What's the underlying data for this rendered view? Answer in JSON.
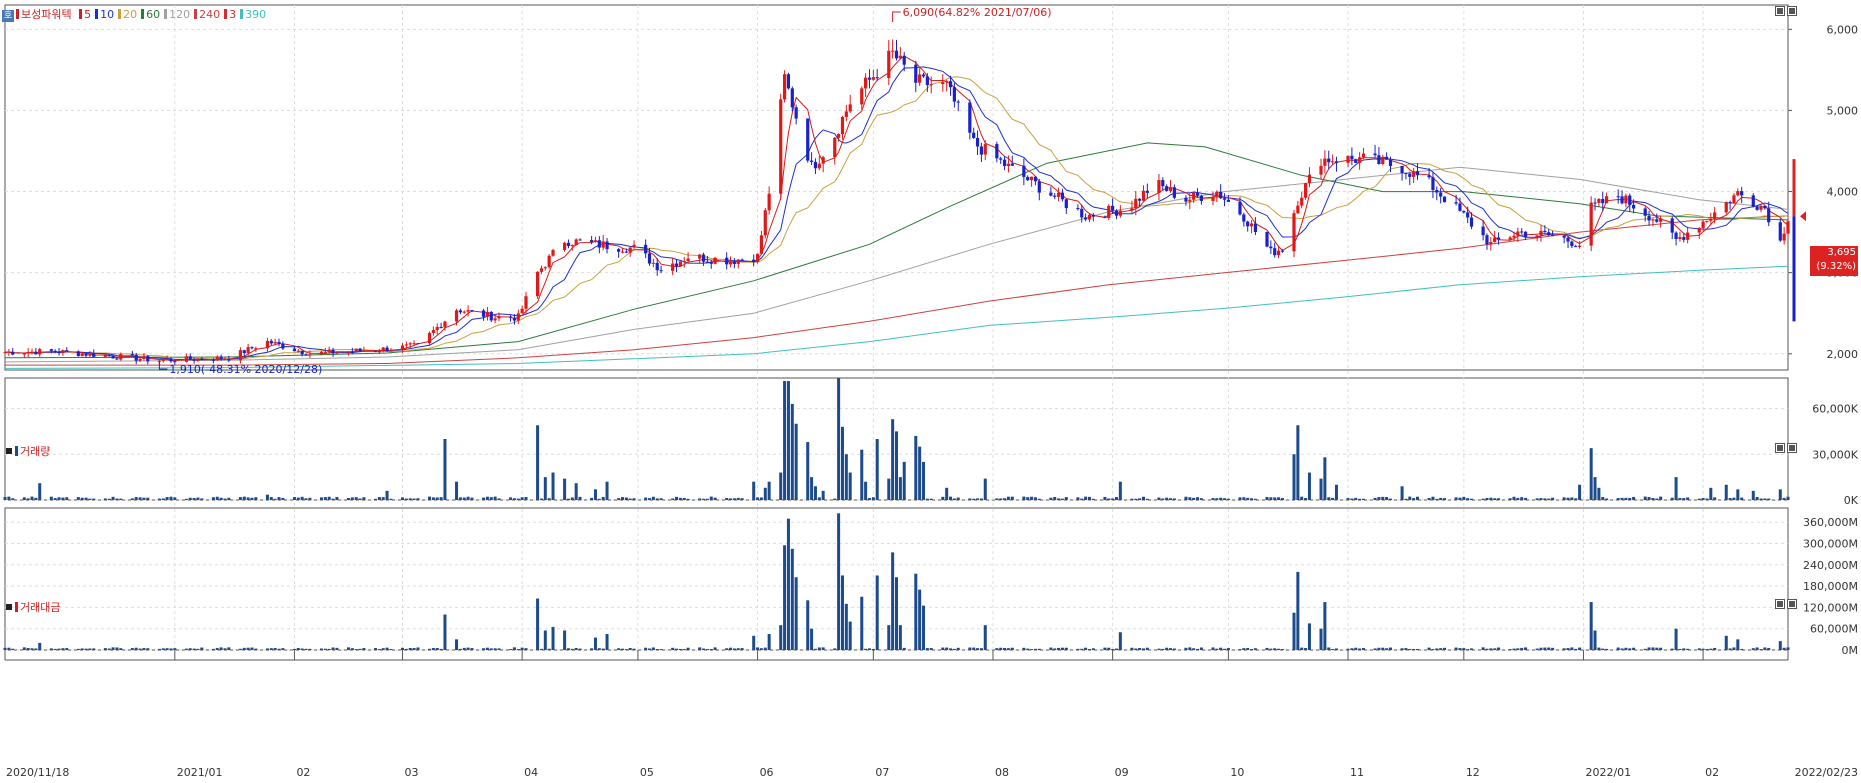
{
  "stock_name": "보성파워텍",
  "legend": {
    "ma": [
      {
        "label": "5",
        "color": "#d81b1b"
      },
      {
        "label": "10",
        "color": "#1d2fcf"
      },
      {
        "label": "20",
        "color": "#c8a040"
      },
      {
        "label": "60",
        "color": "#2c7a3a"
      },
      {
        "label": "120",
        "color": "#a0a0a0"
      },
      {
        "label": "240",
        "color": "#d04040"
      },
      {
        "label": "3",
        "color": "#d03030"
      },
      {
        "label": "390",
        "color": "#40c0c0"
      }
    ]
  },
  "panes": {
    "volume_label": "거래량",
    "amount_label": "거래대금"
  },
  "annotations": {
    "high": "6,090(64.82% 2021/07/06)",
    "low": "1,910(-48.31% 2020/12/28)",
    "current_price": "3,695",
    "current_change": "(9.32%)"
  },
  "chart_data": [
    {
      "type": "candlestick",
      "title": "보성파워텍",
      "x_range": [
        "2020/11/18",
        "2022/02/23"
      ],
      "ylim": [
        1800,
        6300
      ],
      "y_ticks": [
        "2,000",
        "3,000",
        "4,000",
        "5,000",
        "6,000"
      ],
      "x_ticks": [
        "2020/11/18",
        "2021/01",
        "02",
        "03",
        "04",
        "05",
        "06",
        "07",
        "08",
        "09",
        "10",
        "11",
        "12",
        "2022/01",
        "02",
        "2022/02/23"
      ],
      "high_point": {
        "value": 6090,
        "date": "2021/07/06"
      },
      "low_point": {
        "value": 1910,
        "date": "2020/12/28"
      },
      "last_price": 3695,
      "price_path": [
        [
          "2020/11/18",
          2020
        ],
        [
          "2020/12/01",
          2030
        ],
        [
          "2020/12/28",
          1920
        ],
        [
          "2021/01/15",
          1950
        ],
        [
          "2021/01/25",
          2150
        ],
        [
          "2021/02/05",
          2000
        ],
        [
          "2021/02/25",
          2060
        ],
        [
          "2021/03/05",
          2100
        ],
        [
          "2021/03/15",
          2550
        ],
        [
          "2021/03/25",
          2450
        ],
        [
          "2021/03/31",
          2450
        ],
        [
          "2021/04/05",
          3000
        ],
        [
          "2021/04/12",
          3400
        ],
        [
          "2021/04/20",
          3350
        ],
        [
          "2021/04/30",
          3300
        ],
        [
          "2021/05/07",
          3050
        ],
        [
          "2021/05/14",
          3200
        ],
        [
          "2021/05/25",
          3150
        ],
        [
          "2021/06/01",
          3200
        ],
        [
          "2021/06/04",
          4000
        ],
        [
          "2021/06/08",
          5400
        ],
        [
          "2021/06/15",
          4300
        ],
        [
          "2021/06/20",
          4600
        ],
        [
          "2021/06/25",
          5100
        ],
        [
          "2021/07/06",
          5700
        ],
        [
          "2021/07/12",
          5350
        ],
        [
          "2021/07/20",
          5300
        ],
        [
          "2021/07/27",
          4600
        ],
        [
          "2021/08/05",
          4300
        ],
        [
          "2021/08/15",
          4000
        ],
        [
          "2021/08/25",
          3700
        ],
        [
          "2021/09/05",
          3800
        ],
        [
          "2021/09/12",
          4100
        ],
        [
          "2021/09/20",
          3900
        ],
        [
          "2021/09/28",
          4000
        ],
        [
          "2021/10/05",
          3700
        ],
        [
          "2021/10/12",
          3250
        ],
        [
          "2021/10/15",
          3300
        ],
        [
          "2021/10/19",
          3900
        ],
        [
          "2021/10/25",
          4400
        ],
        [
          "2021/11/05",
          4400
        ],
        [
          "2021/11/15",
          4300
        ],
        [
          "2021/11/22",
          4100
        ],
        [
          "2021/12/01",
          3700
        ],
        [
          "2021/12/08",
          3350
        ],
        [
          "2021/12/15",
          3500
        ],
        [
          "2021/12/25",
          3450
        ],
        [
          "2021/12/31",
          3350
        ],
        [
          "2022/01/03",
          3800
        ],
        [
          "2022/01/10",
          3950
        ],
        [
          "2022/01/20",
          3650
        ],
        [
          "2022/01/25",
          3400
        ],
        [
          "2022/02/03",
          3700
        ],
        [
          "2022/02/10",
          3980
        ],
        [
          "2022/02/17",
          3800
        ],
        [
          "2022/02/21",
          3380
        ],
        [
          "2022/02/23",
          3695
        ]
      ],
      "ma_curves": {
        "60": [
          [
            "2020/11/18",
            1950
          ],
          [
            "2021/01/15",
            1960
          ],
          [
            "2021/02/25",
            2010
          ],
          [
            "2021/03/31",
            2150
          ],
          [
            "2021/04/30",
            2550
          ],
          [
            "2021/05/31",
            2900
          ],
          [
            "2021/06/30",
            3350
          ],
          [
            "2021/07/20",
            3800
          ],
          [
            "2021/08/15",
            4350
          ],
          [
            "2021/09/10",
            4600
          ],
          [
            "2021/09/25",
            4550
          ],
          [
            "2021/10/20",
            4200
          ],
          [
            "2021/11/10",
            4000
          ],
          [
            "2021/12/01",
            4000
          ],
          [
            "2021/12/31",
            3850
          ],
          [
            "2022/01/20",
            3700
          ],
          [
            "2022/02/23",
            3650
          ]
        ],
        "120": [
          [
            "2020/11/18",
            1900
          ],
          [
            "2021/01/15",
            1920
          ],
          [
            "2021/02/25",
            1960
          ],
          [
            "2021/03/31",
            2050
          ],
          [
            "2021/04/30",
            2300
          ],
          [
            "2021/05/31",
            2500
          ],
          [
            "2021/06/30",
            2900
          ],
          [
            "2021/07/31",
            3350
          ],
          [
            "2021/08/31",
            3750
          ],
          [
            "2021/09/30",
            4000
          ],
          [
            "2021/10/31",
            4150
          ],
          [
            "2021/11/30",
            4300
          ],
          [
            "2021/12/31",
            4150
          ],
          [
            "2022/01/31",
            3900
          ],
          [
            "2022/02/23",
            3780
          ]
        ],
        "240": [
          [
            "2020/11/18",
            1860
          ],
          [
            "2021/01/15",
            1860
          ],
          [
            "2021/02/25",
            1880
          ],
          [
            "2021/03/31",
            1950
          ],
          [
            "2021/04/30",
            2050
          ],
          [
            "2021/05/31",
            2200
          ],
          [
            "2021/06/30",
            2400
          ],
          [
            "2021/07/31",
            2650
          ],
          [
            "2021/08/31",
            2850
          ],
          [
            "2021/09/30",
            3000
          ],
          [
            "2021/10/31",
            3150
          ],
          [
            "2021/11/30",
            3300
          ],
          [
            "2021/12/31",
            3500
          ],
          [
            "2022/01/31",
            3650
          ],
          [
            "2022/02/23",
            3700
          ]
        ],
        "390": [
          [
            "2020/11/18",
            1820
          ],
          [
            "2021/01/15",
            1830
          ],
          [
            "2021/03/31",
            1880
          ],
          [
            "2021/05/31",
            2000
          ],
          [
            "2021/06/30",
            2150
          ],
          [
            "2021/07/31",
            2350
          ],
          [
            "2021/08/31",
            2450
          ],
          [
            "2021/09/30",
            2560
          ],
          [
            "2021/10/31",
            2700
          ],
          [
            "2021/11/30",
            2850
          ],
          [
            "2021/12/31",
            2950
          ],
          [
            "2022/01/31",
            3030
          ],
          [
            "2022/02/23",
            3080
          ]
        ]
      }
    },
    {
      "type": "bar",
      "title": "거래량",
      "ylim": [
        0,
        80000
      ],
      "y_ticks": [
        "0K",
        "30,000K",
        "60,000K"
      ],
      "spikes": [
        [
          "2020/11/27",
          11000
        ],
        [
          "2021/01/25",
          3500
        ],
        [
          "2021/02/25",
          6000
        ],
        [
          "2021/03/12",
          40000
        ],
        [
          "2021/03/15",
          12000
        ],
        [
          "2021/03/20",
          10000
        ],
        [
          "2021/04/05",
          49000
        ],
        [
          "2021/04/07",
          15000
        ],
        [
          "2021/04/09",
          18000
        ],
        [
          "2021/04/12",
          14000
        ],
        [
          "2021/04/15",
          11000
        ],
        [
          "2021/04/20",
          7000
        ],
        [
          "2021/04/23",
          12000
        ],
        [
          "2021/05/31",
          12000
        ],
        [
          "2021/06/03",
          8000
        ],
        [
          "2021/06/04",
          12000
        ],
        [
          "2021/06/07",
          18000
        ],
        [
          "2021/06/08",
          78000
        ],
        [
          "2021/06/09",
          78000
        ],
        [
          "2021/06/10",
          63000
        ],
        [
          "2021/06/11",
          50000
        ],
        [
          "2021/06/14",
          38000
        ],
        [
          "2021/06/15",
          15000
        ],
        [
          "2021/06/16",
          9000
        ],
        [
          "2021/06/18",
          6000
        ],
        [
          "2021/06/22",
          80000
        ],
        [
          "2021/06/23",
          48000
        ],
        [
          "2021/06/24",
          30000
        ],
        [
          "2021/06/25",
          18000
        ],
        [
          "2021/06/28",
          33000
        ],
        [
          "2021/06/29",
          12000
        ],
        [
          "2021/07/02",
          40000
        ],
        [
          "2021/07/05",
          14000
        ],
        [
          "2021/07/06",
          53000
        ],
        [
          "2021/07/07",
          45000
        ],
        [
          "2021/07/08",
          15000
        ],
        [
          "2021/07/09",
          25000
        ],
        [
          "2021/07/12",
          42000
        ],
        [
          "2021/07/13",
          35000
        ],
        [
          "2021/07/14",
          25000
        ],
        [
          "2021/07/20",
          8000
        ],
        [
          "2021/07/30",
          14000
        ],
        [
          "2021/09/03",
          12000
        ],
        [
          "2021/10/18",
          30000
        ],
        [
          "2021/10/19",
          49000
        ],
        [
          "2021/10/22",
          18000
        ],
        [
          "2021/10/25",
          14000
        ],
        [
          "2021/10/26",
          28000
        ],
        [
          "2021/10/29",
          10000
        ],
        [
          "2021/11/15",
          9000
        ],
        [
          "2021/12/31",
          10000
        ],
        [
          "2022/01/03",
          34000
        ],
        [
          "2022/01/04",
          15000
        ],
        [
          "2022/01/05",
          8000
        ],
        [
          "2022/01/25",
          15000
        ],
        [
          "2022/02/03",
          8000
        ],
        [
          "2022/02/07",
          10000
        ],
        [
          "2022/02/10",
          7000
        ],
        [
          "2022/02/14",
          6000
        ],
        [
          "2022/02/21",
          7000
        ]
      ]
    },
    {
      "type": "bar",
      "title": "거래대금",
      "ylim": [
        0,
        400000
      ],
      "y_ticks": [
        "0M",
        "60,000M",
        "120,000M",
        "180,000M",
        "240,000M",
        "300,000M",
        "360,000M"
      ],
      "spikes": [
        [
          "2020/11/27",
          20000
        ],
        [
          "2021/03/12",
          100000
        ],
        [
          "2021/03/15",
          30000
        ],
        [
          "2021/04/05",
          145000
        ],
        [
          "2021/04/07",
          55000
        ],
        [
          "2021/04/09",
          65000
        ],
        [
          "2021/04/12",
          55000
        ],
        [
          "2021/04/20",
          35000
        ],
        [
          "2021/04/23",
          45000
        ],
        [
          "2021/05/31",
          40000
        ],
        [
          "2021/06/04",
          45000
        ],
        [
          "2021/06/07",
          70000
        ],
        [
          "2021/06/08",
          295000
        ],
        [
          "2021/06/09",
          370000
        ],
        [
          "2021/06/10",
          285000
        ],
        [
          "2021/06/11",
          205000
        ],
        [
          "2021/06/14",
          140000
        ],
        [
          "2021/06/15",
          60000
        ],
        [
          "2021/06/22",
          385000
        ],
        [
          "2021/06/23",
          210000
        ],
        [
          "2021/06/24",
          130000
        ],
        [
          "2021/06/25",
          80000
        ],
        [
          "2021/06/28",
          150000
        ],
        [
          "2021/07/02",
          210000
        ],
        [
          "2021/07/05",
          70000
        ],
        [
          "2021/07/06",
          275000
        ],
        [
          "2021/07/07",
          205000
        ],
        [
          "2021/07/08",
          70000
        ],
        [
          "2021/07/12",
          215000
        ],
        [
          "2021/07/13",
          170000
        ],
        [
          "2021/07/14",
          125000
        ],
        [
          "2021/07/30",
          70000
        ],
        [
          "2021/09/03",
          50000
        ],
        [
          "2021/10/18",
          105000
        ],
        [
          "2021/10/19",
          220000
        ],
        [
          "2021/10/22",
          75000
        ],
        [
          "2021/10/25",
          60000
        ],
        [
          "2021/10/26",
          135000
        ],
        [
          "2022/01/03",
          135000
        ],
        [
          "2022/01/04",
          55000
        ],
        [
          "2022/01/25",
          60000
        ],
        [
          "2022/02/07",
          40000
        ],
        [
          "2022/02/10",
          30000
        ],
        [
          "2022/02/21",
          25000
        ]
      ]
    }
  ]
}
